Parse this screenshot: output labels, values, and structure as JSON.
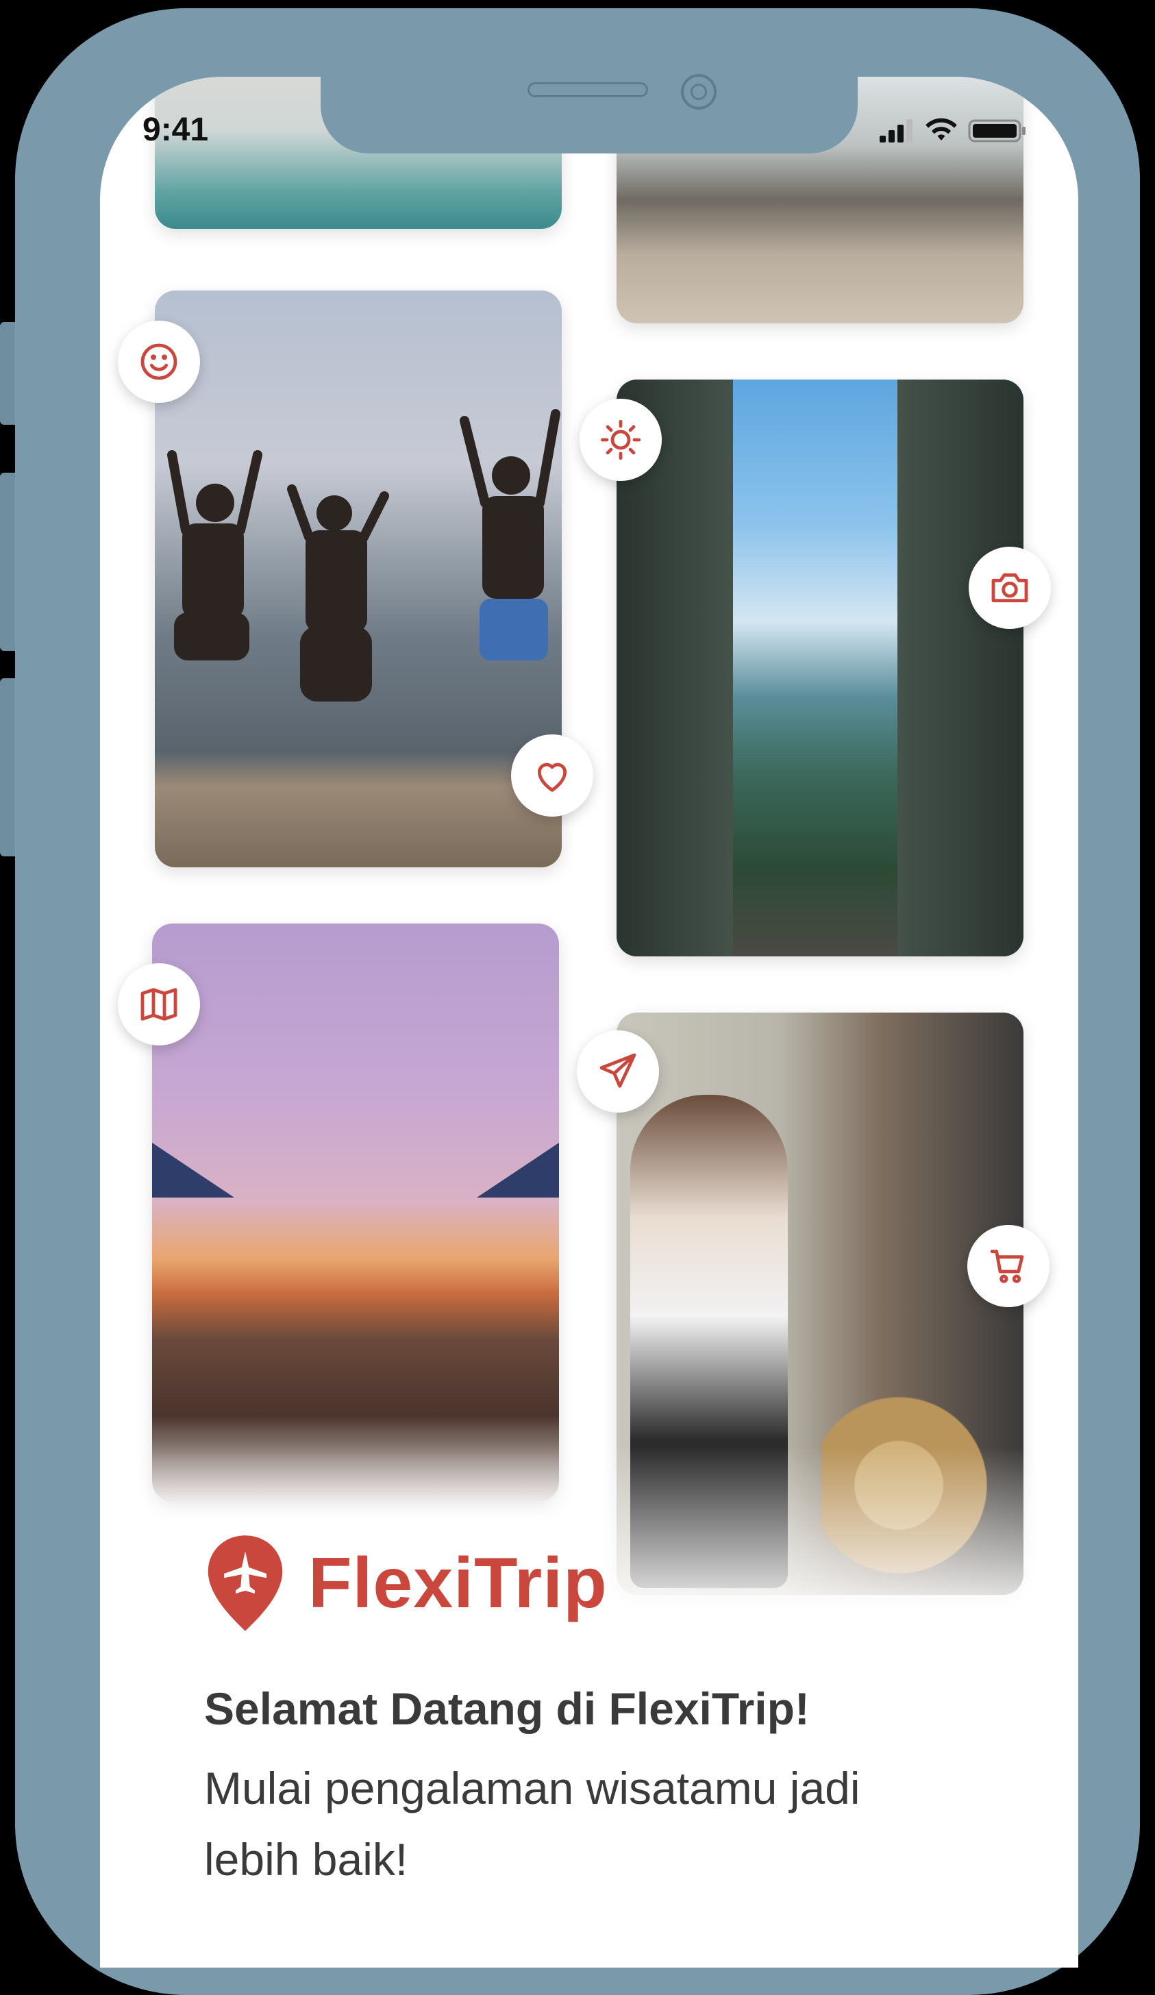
{
  "status_bar": {
    "time": "9:41"
  },
  "brand": {
    "name": "FlexiTrip",
    "color": "#c9473d"
  },
  "welcome": {
    "title": "Selamat Datang di FlexiTrip!",
    "subtitle": "Mulai pengalaman wisatamu jadi lebih baik!"
  },
  "gallery": {
    "photos": [
      "pool-photo",
      "beach-photo",
      "jumping-friends-photo",
      "temple-gate-photo",
      "sunset-pier-photo",
      "market-shopping-photo"
    ],
    "icons": [
      "smile-icon",
      "sun-icon",
      "camera-icon",
      "heart-icon",
      "map-icon",
      "send-icon",
      "cart-icon"
    ]
  },
  "colors": {
    "accent": "#c9473d",
    "frame": "#7a9aac",
    "text": "#3a3a3a"
  }
}
